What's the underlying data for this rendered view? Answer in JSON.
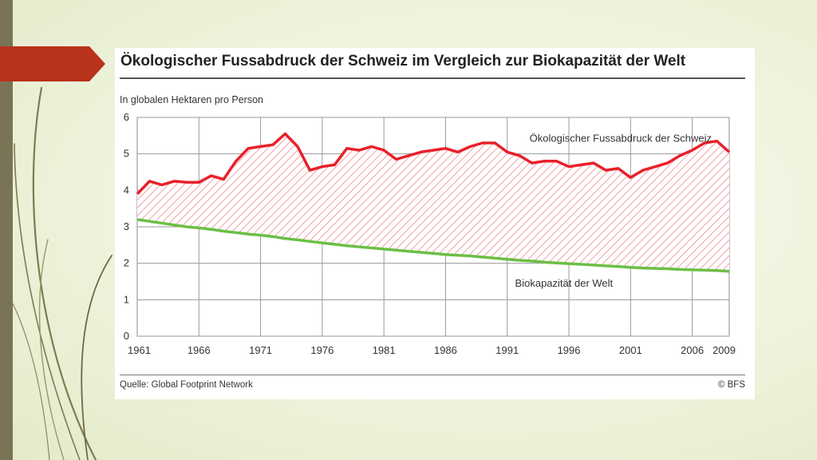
{
  "slide": {
    "accent_bar_color": "#7a7456",
    "arrow_color": "#b9321c",
    "background_color": "#eef3dc"
  },
  "chart_data": {
    "type": "area",
    "title": "Ökologischer Fussabdruck der Schweiz im Vergleich zur Biokapazität der Welt",
    "ylabel": "In globalen Hektaren pro Person",
    "source": "Quelle: Global Footprint Network",
    "credit": "© BFS",
    "xlim": [
      1961,
      2009
    ],
    "ylim": [
      0,
      6
    ],
    "x_ticks": [
      "1961",
      "1966",
      "1971",
      "1976",
      "1981",
      "1986",
      "1991",
      "1996",
      "2001",
      "2006",
      "2009"
    ],
    "y_ticks": [
      "0",
      "1",
      "2",
      "3",
      "4",
      "5",
      "6"
    ],
    "grid": true,
    "fill_between_series": "hatched red",
    "x": [
      1961,
      1962,
      1963,
      1964,
      1965,
      1966,
      1967,
      1968,
      1969,
      1970,
      1971,
      1972,
      1973,
      1974,
      1975,
      1976,
      1977,
      1978,
      1979,
      1980,
      1981,
      1982,
      1983,
      1984,
      1985,
      1986,
      1987,
      1988,
      1989,
      1990,
      1991,
      1992,
      1993,
      1994,
      1995,
      1996,
      1997,
      1998,
      1999,
      2000,
      2001,
      2002,
      2003,
      2004,
      2005,
      2006,
      2007,
      2008,
      2009
    ],
    "series": [
      {
        "name": "Ökologischer Fussabdruck der Schweiz",
        "color": "#e8202a",
        "values": [
          3.9,
          4.25,
          4.15,
          4.25,
          4.22,
          4.22,
          4.4,
          4.3,
          4.8,
          5.15,
          5.2,
          5.25,
          5.55,
          5.2,
          4.55,
          4.65,
          4.7,
          5.15,
          5.1,
          5.2,
          5.1,
          4.85,
          4.95,
          5.05,
          5.1,
          5.15,
          5.05,
          5.2,
          5.3,
          5.3,
          5.05,
          4.95,
          4.75,
          4.8,
          4.8,
          4.65,
          4.7,
          4.75,
          4.55,
          4.6,
          4.35,
          4.55,
          4.65,
          4.75,
          4.95,
          5.1,
          5.3,
          5.35,
          5.05
        ]
      },
      {
        "name": "Biokapazität  der Welt",
        "color": "#6cbf45",
        "values": [
          3.2,
          3.15,
          3.1,
          3.05,
          3.0,
          2.97,
          2.93,
          2.88,
          2.84,
          2.8,
          2.77,
          2.73,
          2.68,
          2.64,
          2.6,
          2.56,
          2.52,
          2.48,
          2.45,
          2.42,
          2.39,
          2.36,
          2.33,
          2.3,
          2.27,
          2.24,
          2.22,
          2.2,
          2.17,
          2.14,
          2.11,
          2.08,
          2.06,
          2.03,
          2.01,
          1.99,
          1.97,
          1.95,
          1.93,
          1.91,
          1.89,
          1.87,
          1.86,
          1.85,
          1.83,
          1.82,
          1.81,
          1.8,
          1.78
        ]
      }
    ]
  }
}
